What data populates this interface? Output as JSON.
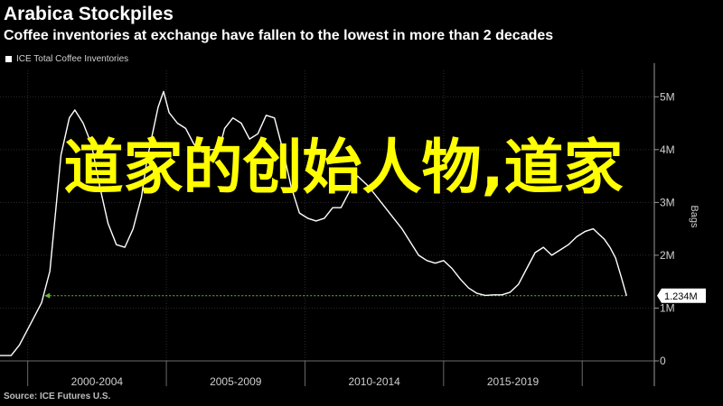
{
  "header": {
    "title": "Arabica Stockpiles",
    "subtitle": "Coffee inventories at exchange have fallen to the lowest in more than 2 decades"
  },
  "legend": {
    "label": "ICE Total Coffee Inventories"
  },
  "source": "Source: ICE Futures U.S.",
  "overlay_text": "道家的创始人物,道家",
  "colors": {
    "line": "#ffffff",
    "marker": "#6fb53a",
    "grid": "#2b2b2b",
    "background": "#000000",
    "overlay": "#ffff00"
  },
  "chart_data": {
    "type": "line",
    "title": "Arabica Stockpiles",
    "ylabel": "Bags",
    "ylim": [
      0,
      5.5
    ],
    "yticks": [
      0,
      1,
      2,
      3,
      4,
      5
    ],
    "ytick_labels": [
      "0",
      "1M",
      "2M",
      "3M",
      "4M",
      "5M"
    ],
    "xlim": [
      1999.0,
      2022.6
    ],
    "xtick_labels": [
      "2000-2004",
      "2005-2009",
      "2010-2014",
      "2015-2019"
    ],
    "xtick_centers": [
      2002.5,
      2007.5,
      2012.5,
      2017.5
    ],
    "period_boundaries": [
      2000,
      2005,
      2010,
      2015,
      2020
    ],
    "series": [
      {
        "name": "ICE Total Coffee Inventories",
        "x": [
          1999.0,
          1999.4,
          1999.7,
          2000.0,
          2000.3,
          2000.5,
          2000.8,
          2001.0,
          2001.2,
          2001.5,
          2001.7,
          2002.0,
          2002.3,
          2002.6,
          2002.9,
          2003.2,
          2003.5,
          2003.8,
          2004.1,
          2004.3,
          2004.5,
          2004.7,
          2004.9,
          2005.1,
          2005.4,
          2005.7,
          2006.0,
          2006.3,
          2006.6,
          2006.9,
          2007.1,
          2007.4,
          2007.7,
          2008.0,
          2008.3,
          2008.6,
          2008.9,
          2009.2,
          2009.5,
          2009.8,
          2010.1,
          2010.4,
          2010.7,
          2011.0,
          2011.3,
          2011.6,
          2011.9,
          2012.3,
          2012.6,
          2012.9,
          2013.2,
          2013.5,
          2013.8,
          2014.1,
          2014.4,
          2014.7,
          2015.0,
          2015.3,
          2015.6,
          2015.9,
          2016.2,
          2016.5,
          2016.8,
          2017.1,
          2017.4,
          2017.7,
          2018.0,
          2018.3,
          2018.6,
          2018.9,
          2019.2,
          2019.5,
          2019.8,
          2020.1,
          2020.4,
          2020.6,
          2020.8,
          2021.0,
          2021.2,
          2021.4,
          2021.6
        ],
        "values": [
          0.1,
          0.1,
          0.3,
          0.6,
          0.9,
          1.1,
          1.7,
          2.8,
          3.9,
          4.6,
          4.75,
          4.5,
          4.1,
          3.3,
          2.6,
          2.2,
          2.15,
          2.5,
          3.1,
          3.8,
          4.3,
          4.8,
          5.1,
          4.7,
          4.5,
          4.4,
          4.1,
          3.95,
          4.0,
          4.0,
          4.4,
          4.6,
          4.5,
          4.2,
          4.3,
          4.65,
          4.6,
          4.0,
          3.3,
          2.8,
          2.7,
          2.65,
          2.7,
          2.9,
          2.9,
          3.2,
          3.5,
          3.3,
          3.1,
          2.9,
          2.7,
          2.5,
          2.25,
          2.0,
          1.9,
          1.85,
          1.9,
          1.75,
          1.55,
          1.38,
          1.28,
          1.24,
          1.25,
          1.25,
          1.3,
          1.45,
          1.75,
          2.05,
          2.15,
          2.0,
          2.1,
          2.2,
          2.35,
          2.45,
          2.5,
          2.4,
          2.3,
          2.15,
          1.95,
          1.6,
          1.234
        ]
      }
    ],
    "reference_line": {
      "value": 1.234,
      "label": "1.234M"
    },
    "grid": true
  }
}
